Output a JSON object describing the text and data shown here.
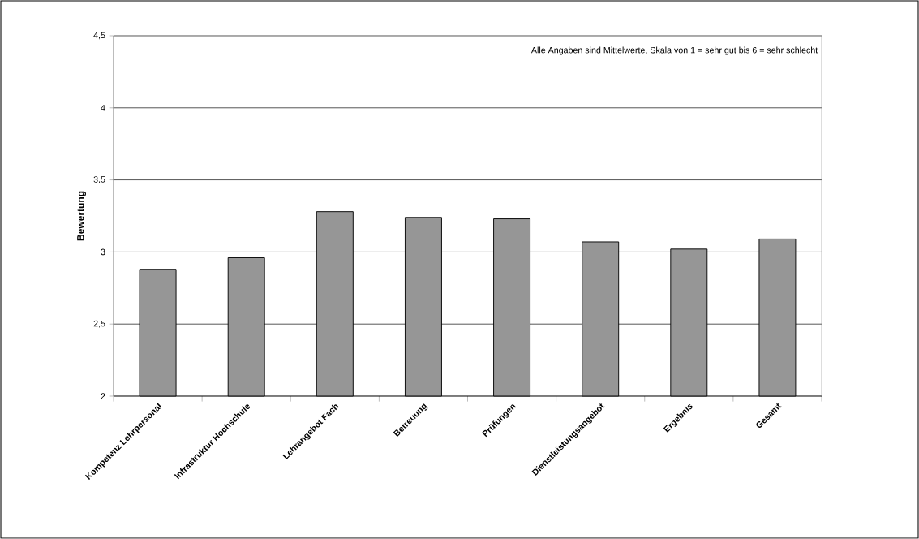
{
  "chart_data": {
    "type": "bar",
    "ylabel": "Bewertung",
    "categories": [
      "Kompetenz Lehrpersonal",
      "Infrastruktur Hochschule",
      "Lehrangebot Fach",
      "Betreuung",
      "Prüfungen",
      "Dienstleistungsangebot",
      "Ergebnis",
      "Gesamt"
    ],
    "values": [
      2.88,
      2.96,
      3.28,
      3.24,
      3.23,
      3.07,
      3.02,
      3.09
    ],
    "color": "#969696",
    "ylim": [
      2,
      4.5
    ],
    "yticks": [
      2,
      {
        "value": 2.5,
        "label": "2,5"
      },
      3,
      {
        "value": 3.5,
        "label": "3,5"
      },
      4,
      {
        "value": 4.5,
        "label": "4,5"
      }
    ],
    "grid": "y",
    "annotations": [
      "Alle Angaben sind Mittelwerte, Skala von 1 = sehr gut bis 6 = sehr schlecht"
    ]
  }
}
